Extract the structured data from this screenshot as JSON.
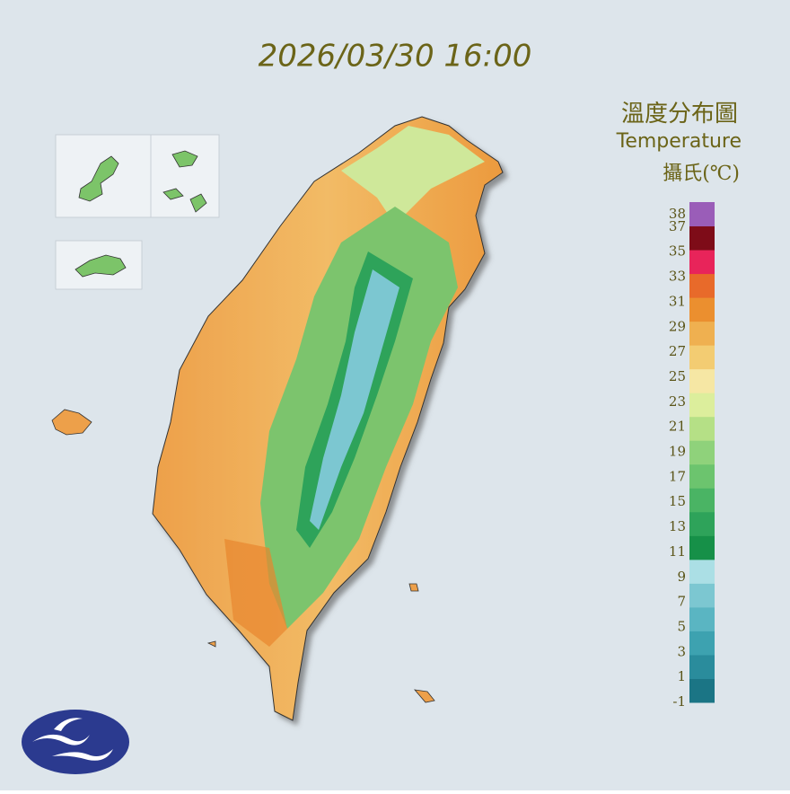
{
  "header": {
    "timestamp": "2026/03/30 16:00"
  },
  "legend": {
    "title": "溫度分布圖",
    "subtitle": "Temperature",
    "unit": "攝氏(℃)",
    "lim": [
      -1,
      39
    ],
    "labels": [
      38,
      37,
      35,
      33,
      31,
      29,
      27,
      25,
      23,
      21,
      19,
      17,
      15,
      13,
      11,
      9,
      7,
      5,
      3,
      1,
      -1
    ],
    "colors": [
      "#1b7585",
      "#2a8c9c",
      "#3da2b0",
      "#5ab5c2",
      "#7cc7d1",
      "#abdfe5",
      "#169048",
      "#2ea35a",
      "#4ab464",
      "#6cc46e",
      "#8fd27b",
      "#b5e086",
      "#dcee9c",
      "#f6e7a4",
      "#f3cc72",
      "#efb050",
      "#eb8f2f",
      "#e86a2a",
      "#e8245a",
      "#7e0c18",
      "#9a5db8"
    ]
  }
}
